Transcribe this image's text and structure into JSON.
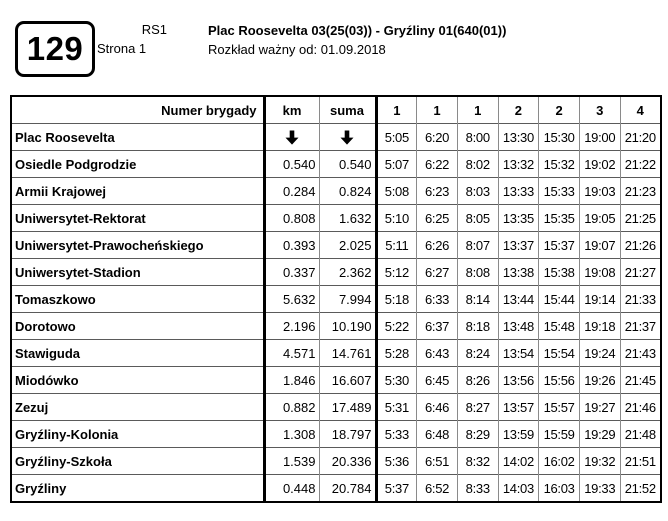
{
  "header": {
    "line_number": "129",
    "route_code": "RS1",
    "page_label": "Strona 1",
    "title": "Plac Roosevelta 03(25(03)) - Gryźliny 01(640(01))",
    "validity": "Rozkład ważny od: 01.09.2018"
  },
  "icons": {
    "down_arrow": "↓"
  },
  "table": {
    "columns": [
      "Numer brygady",
      "km",
      "suma",
      "1",
      "1",
      "1",
      "2",
      "2",
      "3",
      "4"
    ],
    "rows": [
      {
        "stop": "Plac Roosevelta",
        "km": "↓",
        "suma": "↓",
        "times": [
          "5:05",
          "6:20",
          "8:00",
          "13:30",
          "15:30",
          "19:00",
          "21:20"
        ]
      },
      {
        "stop": "Osiedle Podgrodzie",
        "km": "0.540",
        "suma": "0.540",
        "times": [
          "5:07",
          "6:22",
          "8:02",
          "13:32",
          "15:32",
          "19:02",
          "21:22"
        ]
      },
      {
        "stop": "Armii Krajowej",
        "km": "0.284",
        "suma": "0.824",
        "times": [
          "5:08",
          "6:23",
          "8:03",
          "13:33",
          "15:33",
          "19:03",
          "21:23"
        ]
      },
      {
        "stop": "Uniwersytet-Rektorat",
        "km": "0.808",
        "suma": "1.632",
        "times": [
          "5:10",
          "6:25",
          "8:05",
          "13:35",
          "15:35",
          "19:05",
          "21:25"
        ]
      },
      {
        "stop": "Uniwersytet-Prawocheńskiego",
        "km": "0.393",
        "suma": "2.025",
        "times": [
          "5:11",
          "6:26",
          "8:07",
          "13:37",
          "15:37",
          "19:07",
          "21:26"
        ]
      },
      {
        "stop": "Uniwersytet-Stadion",
        "km": "0.337",
        "suma": "2.362",
        "times": [
          "5:12",
          "6:27",
          "8:08",
          "13:38",
          "15:38",
          "19:08",
          "21:27"
        ]
      },
      {
        "stop": "Tomaszkowo",
        "km": "5.632",
        "suma": "7.994",
        "times": [
          "5:18",
          "6:33",
          "8:14",
          "13:44",
          "15:44",
          "19:14",
          "21:33"
        ]
      },
      {
        "stop": "Dorotowo",
        "km": "2.196",
        "suma": "10.190",
        "times": [
          "5:22",
          "6:37",
          "8:18",
          "13:48",
          "15:48",
          "19:18",
          "21:37"
        ]
      },
      {
        "stop": "Stawiguda",
        "km": "4.571",
        "suma": "14.761",
        "times": [
          "5:28",
          "6:43",
          "8:24",
          "13:54",
          "15:54",
          "19:24",
          "21:43"
        ]
      },
      {
        "stop": "Miodówko",
        "km": "1.846",
        "suma": "16.607",
        "times": [
          "5:30",
          "6:45",
          "8:26",
          "13:56",
          "15:56",
          "19:26",
          "21:45"
        ]
      },
      {
        "stop": "Zezuj",
        "km": "0.882",
        "suma": "17.489",
        "times": [
          "5:31",
          "6:46",
          "8:27",
          "13:57",
          "15:57",
          "19:27",
          "21:46"
        ]
      },
      {
        "stop": "Gryźliny-Kolonia",
        "km": "1.308",
        "suma": "18.797",
        "times": [
          "5:33",
          "6:48",
          "8:29",
          "13:59",
          "15:59",
          "19:29",
          "21:48"
        ]
      },
      {
        "stop": "Gryźliny-Szkoła",
        "km": "1.539",
        "suma": "20.336",
        "times": [
          "5:36",
          "6:51",
          "8:32",
          "14:02",
          "16:02",
          "19:32",
          "21:51"
        ]
      },
      {
        "stop": "Gryźliny",
        "km": "0.448",
        "suma": "20.784",
        "times": [
          "5:37",
          "6:52",
          "8:33",
          "14:03",
          "16:03",
          "19:33",
          "21:52"
        ]
      }
    ]
  }
}
